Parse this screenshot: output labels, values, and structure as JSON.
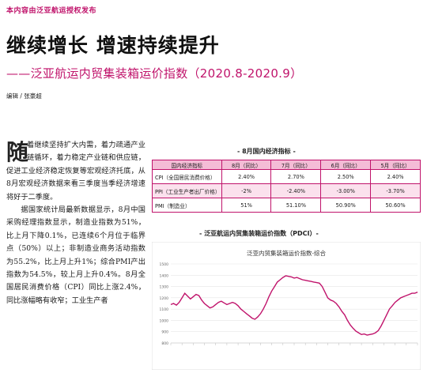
{
  "header": {
    "top_note": "本内容由泛亚航运授权发布",
    "headline": "继续增长 增速持续提升",
    "subhead": "——泛亚航运内贸集装箱运价指数（2020.8-2020.9）",
    "editor": "编辑 / 张豪超"
  },
  "article": {
    "dropcap": "随",
    "p1_rest": "着继续坚持扩大内需，着力疏通产业链循环，着力稳定产业链和供应链，促进工业经济稳定恢复等宏观经济托底，从8月宏观经济数据来看三季度当季经济增速将好于二季度。",
    "p2": "据国家统计局最新数据显示，8月中国采购经理指数显示，制造业指数为51%，比上月下降0.1%，已连续6个月位于临界点（50%）以上；非制造业商务活动指数为55.2%，比上月上升1%；综合PMI产出指数为54.5%，较上月上升0.4%。8月全国居民消费价格（CPI）同比上涨2.4%，同比涨幅略有收窄；工业生产者"
  },
  "econ_table": {
    "title": "- 8月国内经济指标 -",
    "headers": [
      "国内经济指标",
      "8月（同比）",
      "7月（同比）",
      "6月（同比）",
      "5月（同比）"
    ],
    "rows": [
      {
        "label": "CPI（全国居民消费价格）",
        "values": [
          "2.40%",
          "2.70%",
          "2.50%",
          "2.40%"
        ]
      },
      {
        "label": "PPI（工业生产者出厂价格）",
        "values": [
          "-2%",
          "-2.40%",
          "-3.00%",
          "-3.70%"
        ]
      },
      {
        "label": "PMI（制造业）",
        "values": [
          "51%",
          "51.10%",
          "50.90%",
          "50.60%"
        ]
      }
    ]
  },
  "chart_section": {
    "heading": "- 泛亚航运内贸集装箱运价指数（PDCI）-"
  },
  "chart_data": {
    "type": "line",
    "title": "泛亚内贸集装箱运价指数-综合",
    "ylim": [
      800,
      1500
    ],
    "y_ticks": [
      800,
      900,
      1000,
      1100,
      1200,
      1300,
      1400,
      1500
    ],
    "grid": true,
    "colors": {
      "line": "#c0136b"
    },
    "series": [
      {
        "values": [
          1140,
          1150,
          1135,
          1160,
          1200,
          1240,
          1215,
          1190,
          1210,
          1230,
          1220,
          1180,
          1150,
          1130,
          1110,
          1120,
          1140,
          1160,
          1170,
          1155,
          1140,
          1150,
          1160,
          1150,
          1130,
          1100,
          1080,
          1060,
          1040,
          1020,
          1010,
          1030,
          1060,
          1100,
          1150,
          1210,
          1260,
          1300,
          1340,
          1360,
          1380,
          1395,
          1390,
          1385,
          1375,
          1380,
          1370,
          1360,
          1355,
          1350,
          1345,
          1340,
          1335,
          1330,
          1300,
          1250,
          1200,
          1180,
          1170,
          1150,
          1120,
          1080,
          1050,
          1000,
          960,
          930,
          905,
          890,
          875,
          880,
          870,
          875,
          880,
          890,
          910,
          950,
          1000,
          1050,
          1100,
          1130,
          1160,
          1180,
          1200,
          1210,
          1220,
          1230,
          1240,
          1240,
          1250
        ]
      }
    ]
  }
}
